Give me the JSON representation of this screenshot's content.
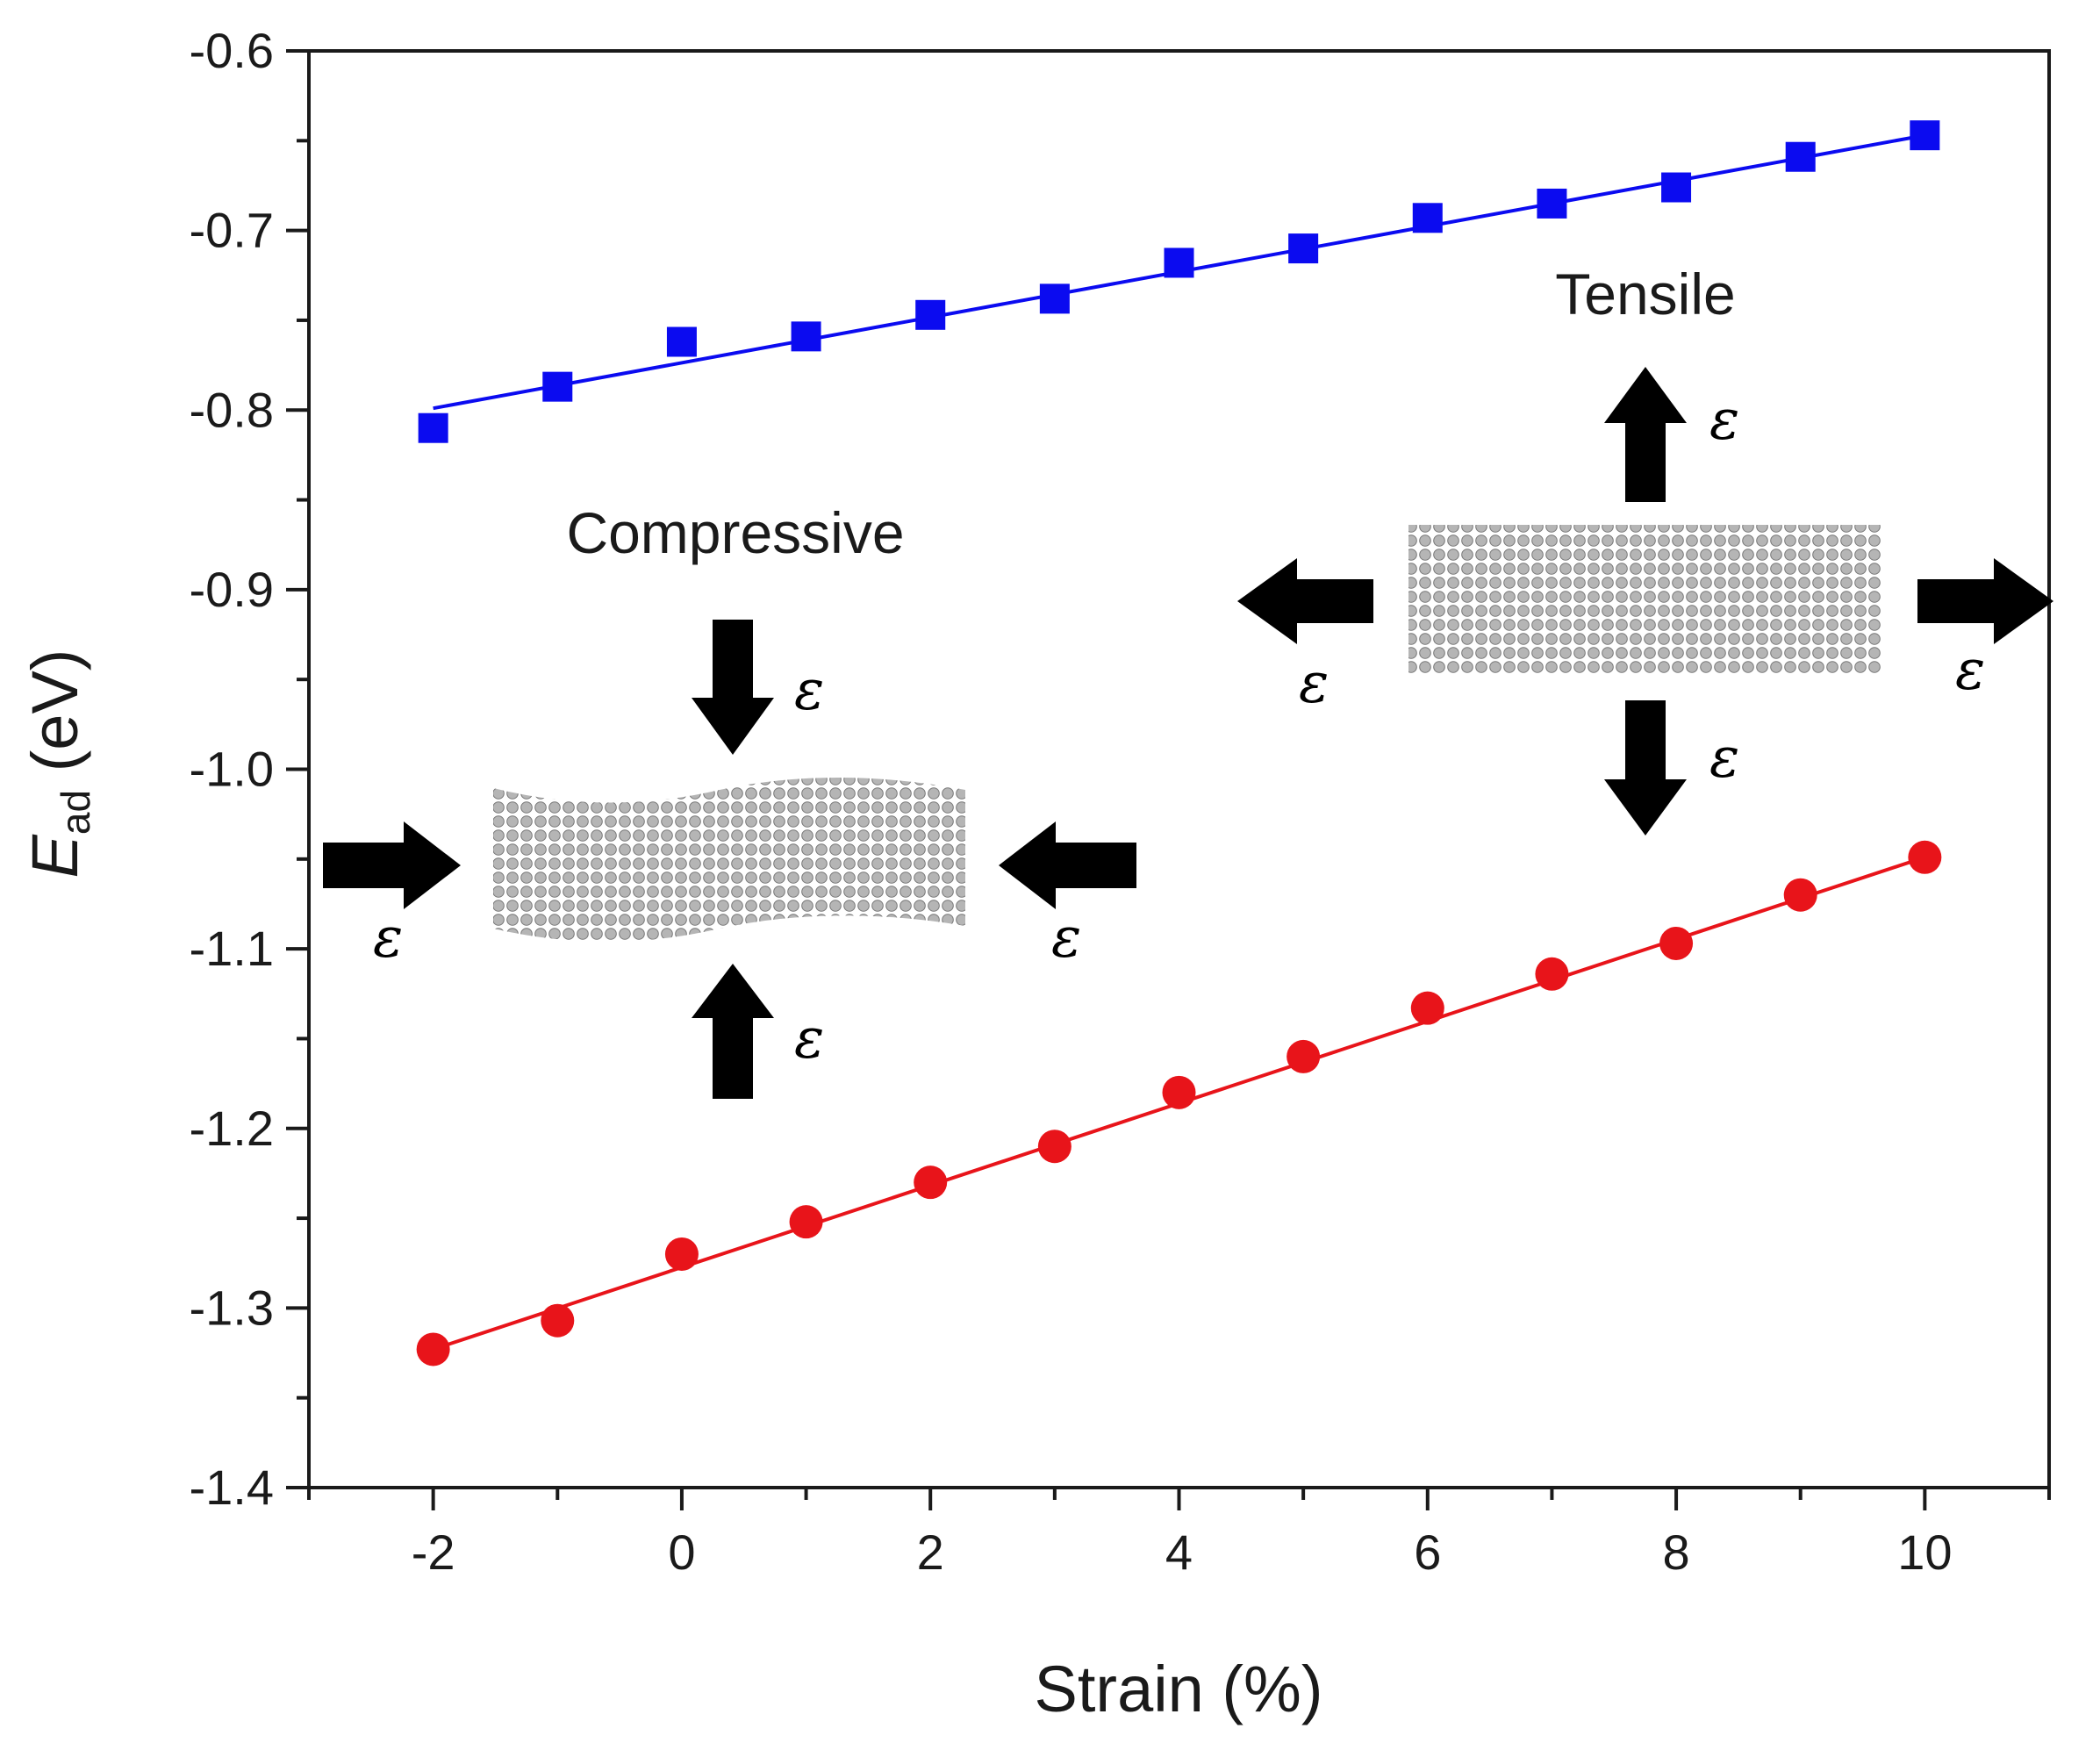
{
  "chart_data": {
    "type": "scatter",
    "title": "",
    "xlabel": "Strain (%)",
    "ylabel": {
      "symbol": "E",
      "subscript": "ad",
      "unit": "(eV)"
    },
    "xlim": [
      -3,
      11
    ],
    "ylim": [
      -1.4,
      -0.6
    ],
    "x_ticks": [
      -2,
      0,
      2,
      4,
      6,
      8,
      10
    ],
    "x_tick_labels": [
      "-2",
      "0",
      "2",
      "4",
      "6",
      "8",
      "10"
    ],
    "y_ticks": [
      -1.4,
      -1.3,
      -1.2,
      -1.1,
      -1.0,
      -0.9,
      -0.8,
      -0.7,
      -0.6
    ],
    "y_tick_labels": [
      "-1.4",
      "-1.3",
      "-1.2",
      "-1.1",
      "-1.0",
      "-0.9",
      "-0.8",
      "-0.7",
      "-0.6"
    ],
    "grid": false,
    "x": [
      -2,
      -1,
      0,
      1,
      2,
      3,
      4,
      5,
      6,
      7,
      8,
      9,
      10
    ],
    "series": [
      {
        "name": "blue-squares",
        "marker": "square",
        "color": "#0b0bf0",
        "values": [
          -0.81,
          -0.787,
          -0.762,
          -0.759,
          -0.747,
          -0.738,
          -0.718,
          -0.71,
          -0.693,
          -0.685,
          -0.676,
          -0.659,
          -0.647
        ],
        "fit": [
          -0.799,
          -0.647
        ]
      },
      {
        "name": "red-circles",
        "marker": "circle",
        "color": "#e8141a",
        "values": [
          -1.323,
          -1.307,
          -1.27,
          -1.252,
          -1.23,
          -1.21,
          -1.18,
          -1.16,
          -1.133,
          -1.114,
          -1.097,
          -1.07,
          -1.049
        ],
        "fit": [
          -1.323,
          -1.049
        ]
      }
    ],
    "annotations": {
      "compressive": "Compressive",
      "tensile": "Tensile",
      "strain_symbol": "ε"
    }
  }
}
